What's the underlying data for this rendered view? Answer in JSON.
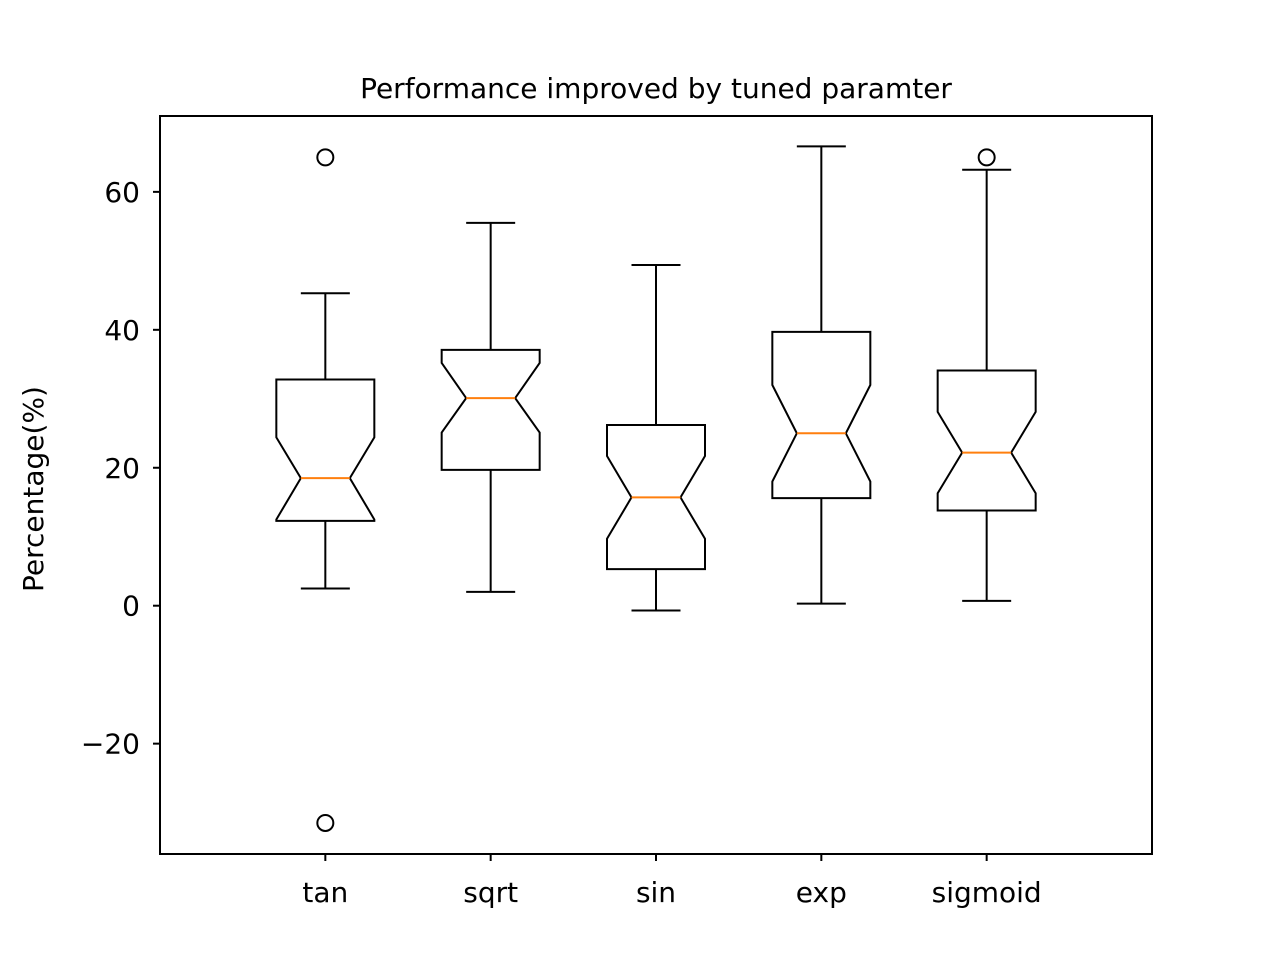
{
  "chart_data": {
    "type": "boxplot",
    "title": "Performance improved by tuned paramter",
    "xlabel": "",
    "ylabel": "Percentage(%)",
    "ylim": [
      -36,
      71
    ],
    "yticks": [
      -20,
      0,
      20,
      40,
      60
    ],
    "ytick_labels": [
      "−20",
      "0",
      "20",
      "40",
      "60"
    ],
    "notched": true,
    "grid": false,
    "categories": [
      "tan",
      "sqrt",
      "sin",
      "exp",
      "sigmoid"
    ],
    "boxes": [
      {
        "label": "tan",
        "whisker_low": 2.5,
        "q1": 12.3,
        "median": 18.5,
        "q3": 32.8,
        "whisker_high": 45.3,
        "notch_low": 12.5,
        "notch_high": 24.4,
        "outliers": [
          65,
          -31.5
        ]
      },
      {
        "label": "sqrt",
        "whisker_low": 2.0,
        "q1": 19.7,
        "median": 30.1,
        "q3": 37.1,
        "whisker_high": 55.5,
        "notch_low": 25.1,
        "notch_high": 35.2,
        "outliers": []
      },
      {
        "label": "sin",
        "whisker_low": -0.7,
        "q1": 5.3,
        "median": 15.7,
        "q3": 26.2,
        "whisker_high": 49.4,
        "notch_low": 9.7,
        "notch_high": 21.7,
        "outliers": []
      },
      {
        "label": "exp",
        "whisker_low": 0.3,
        "q1": 15.6,
        "median": 25.0,
        "q3": 39.7,
        "whisker_high": 66.6,
        "notch_low": 18.0,
        "notch_high": 32.0,
        "outliers": []
      },
      {
        "label": "sigmoid",
        "whisker_low": 0.7,
        "q1": 13.8,
        "median": 22.2,
        "q3": 34.1,
        "whisker_high": 63.2,
        "notch_low": 16.3,
        "notch_high": 28.1,
        "outliers": [
          65
        ]
      }
    ],
    "colors": {
      "box": "#000000",
      "median": "#ff7f0e",
      "outlier": "#000000"
    }
  }
}
